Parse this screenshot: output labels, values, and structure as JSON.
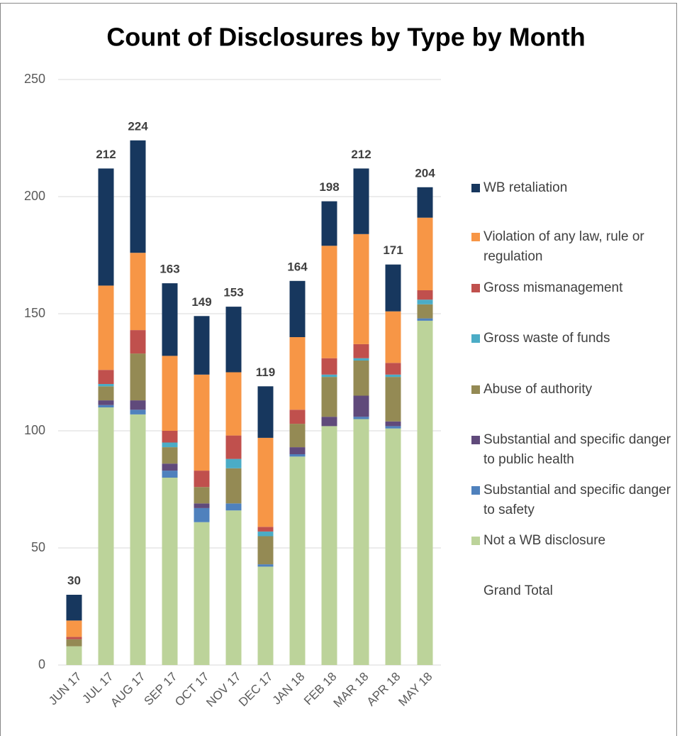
{
  "chart_data": {
    "type": "bar",
    "stacked": true,
    "title": "Count of Disclosures by Type by Month",
    "categories": [
      "JUN 17",
      "JUL 17",
      "AUG 17",
      "SEP 17",
      "OCT 17",
      "NOV 17",
      "DEC 17",
      "JAN 18",
      "FEB 18",
      "MAR 18",
      "APR 18",
      "MAY 18"
    ],
    "ylim": [
      0,
      250
    ],
    "yticks": [
      0,
      50,
      100,
      150,
      200,
      250
    ],
    "grid": true,
    "legend": "right",
    "series": [
      {
        "name": "Not a WB disclosure",
        "color": "#bcd39a",
        "values": [
          8,
          110,
          107,
          80,
          61,
          66,
          42,
          89,
          102,
          105,
          101,
          147
        ]
      },
      {
        "name": "Substantial and specific danger to safety",
        "color": "#4f81bd",
        "values": [
          0,
          1,
          2,
          3,
          6,
          3,
          1,
          1,
          0,
          1,
          1,
          1
        ]
      },
      {
        "name": "Substantial and specific danger to public health",
        "color": "#604a7b",
        "values": [
          0,
          2,
          4,
          3,
          2,
          0,
          0,
          3,
          4,
          9,
          2,
          0
        ]
      },
      {
        "name": "Abuse of authority",
        "color": "#948a54",
        "values": [
          3,
          6,
          20,
          7,
          7,
          15,
          12,
          10,
          17,
          15,
          19,
          6
        ]
      },
      {
        "name": "Gross waste of funds",
        "color": "#4bacc6",
        "values": [
          0,
          1,
          0,
          2,
          0,
          4,
          2,
          0,
          1,
          1,
          1,
          2
        ]
      },
      {
        "name": "Gross mismanagement",
        "color": "#c0504d",
        "values": [
          1,
          6,
          10,
          5,
          7,
          10,
          2,
          6,
          7,
          6,
          5,
          4
        ]
      },
      {
        "name": "Violation of any law, rule or regulation",
        "color": "#f79646",
        "values": [
          7,
          36,
          33,
          32,
          41,
          27,
          38,
          31,
          48,
          47,
          22,
          31
        ]
      },
      {
        "name": "WB retaliation",
        "color": "#17375e",
        "values": [
          11,
          50,
          48,
          31,
          25,
          28,
          22,
          24,
          19,
          28,
          20,
          13
        ]
      }
    ],
    "totals": {
      "name": "Grand Total",
      "values": [
        30,
        212,
        224,
        163,
        149,
        153,
        119,
        164,
        198,
        212,
        171,
        204
      ]
    }
  }
}
